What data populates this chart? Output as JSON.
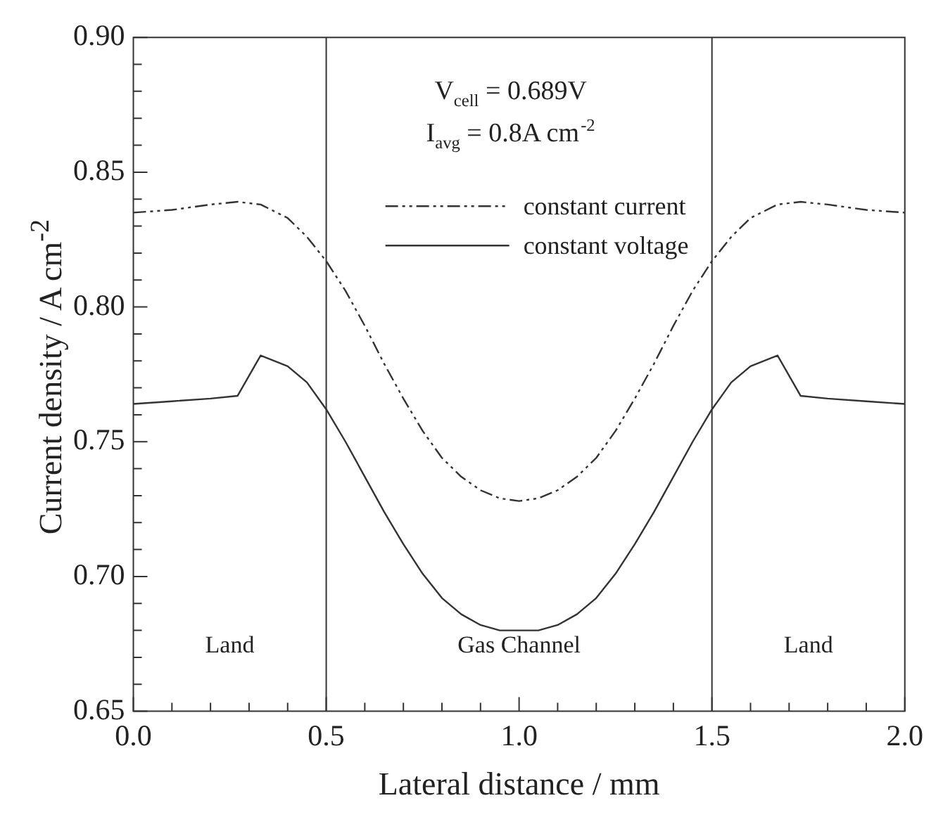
{
  "chart_data": {
    "type": "line",
    "xlabel": "Lateral distance / mm",
    "ylabel": "Current density / A cm$^{-2}$",
    "xlim": [
      0,
      2
    ],
    "ylim": [
      0.65,
      0.9
    ],
    "xticks": [
      {
        "value": 0,
        "label": "0.0"
      },
      {
        "value": 0.1,
        "label": null
      },
      {
        "value": 0.2,
        "label": null
      },
      {
        "value": 0.3,
        "label": null
      },
      {
        "value": 0.4,
        "label": null
      },
      {
        "value": 0.5,
        "label": "0.5"
      },
      {
        "value": 0.6,
        "label": null
      },
      {
        "value": 0.7,
        "label": null
      },
      {
        "value": 0.8,
        "label": null
      },
      {
        "value": 0.9,
        "label": null
      },
      {
        "value": 1,
        "label": "1.0"
      },
      {
        "value": 1.1,
        "label": null
      },
      {
        "value": 1.2,
        "label": null
      },
      {
        "value": 1.3,
        "label": null
      },
      {
        "value": 1.4,
        "label": null
      },
      {
        "value": 1.5,
        "label": "1.5"
      },
      {
        "value": 1.6,
        "label": null
      },
      {
        "value": 1.7,
        "label": null
      },
      {
        "value": 1.8,
        "label": null
      },
      {
        "value": 1.9,
        "label": null
      },
      {
        "value": 2,
        "label": "2.0"
      }
    ],
    "yticks": [
      {
        "value": 0.65,
        "label": "0.65"
      },
      {
        "value": 0.66,
        "label": null
      },
      {
        "value": 0.67,
        "label": null
      },
      {
        "value": 0.68,
        "label": null
      },
      {
        "value": 0.69,
        "label": null
      },
      {
        "value": 0.7,
        "label": "0.70"
      },
      {
        "value": 0.71,
        "label": null
      },
      {
        "value": 0.72,
        "label": null
      },
      {
        "value": 0.73,
        "label": null
      },
      {
        "value": 0.74,
        "label": null
      },
      {
        "value": 0.75,
        "label": "0.75"
      },
      {
        "value": 0.76,
        "label": null
      },
      {
        "value": 0.77,
        "label": null
      },
      {
        "value": 0.78,
        "label": null
      },
      {
        "value": 0.79,
        "label": null
      },
      {
        "value": 0.8,
        "label": "0.80"
      },
      {
        "value": 0.81,
        "label": null
      },
      {
        "value": 0.82,
        "label": null
      },
      {
        "value": 0.83,
        "label": null
      },
      {
        "value": 0.84,
        "label": null
      },
      {
        "value": 0.85,
        "label": "0.85"
      },
      {
        "value": 0.86,
        "label": null
      },
      {
        "value": 0.87,
        "label": null
      },
      {
        "value": 0.88,
        "label": null
      },
      {
        "value": 0.89,
        "label": null
      },
      {
        "value": 0.9,
        "label": "0.90"
      }
    ],
    "x": [
      0,
      0.1,
      0.2,
      0.27,
      0.33,
      0.4,
      0.45,
      0.5,
      0.55,
      0.6,
      0.65,
      0.7,
      0.75,
      0.8,
      0.85,
      0.9,
      0.95,
      1,
      1.05,
      1.1,
      1.15,
      1.2,
      1.25,
      1.3,
      1.35,
      1.4,
      1.45,
      1.5,
      1.55,
      1.6,
      1.67,
      1.73,
      1.8,
      1.9,
      2
    ],
    "series": [
      {
        "name": "constant current",
        "color": "#333333",
        "line_style": "dashdotdot",
        "values": [
          0.835,
          0.836,
          0.838,
          0.839,
          0.838,
          0.833,
          0.826,
          0.817,
          0.806,
          0.793,
          0.779,
          0.766,
          0.754,
          0.744,
          0.737,
          0.732,
          0.729,
          0.728,
          0.729,
          0.732,
          0.737,
          0.744,
          0.754,
          0.766,
          0.779,
          0.793,
          0.806,
          0.817,
          0.826,
          0.833,
          0.838,
          0.839,
          0.838,
          0.836,
          0.835
        ]
      },
      {
        "name": "constant voltage",
        "color": "#333333",
        "line_style": "solid",
        "values": [
          0.764,
          0.765,
          0.766,
          0.767,
          0.782,
          0.778,
          0.772,
          0.762,
          0.75,
          0.737,
          0.724,
          0.712,
          0.701,
          0.692,
          0.686,
          0.682,
          0.68,
          0.68,
          0.68,
          0.682,
          0.686,
          0.692,
          0.701,
          0.712,
          0.724,
          0.737,
          0.75,
          0.762,
          0.772,
          0.778,
          0.782,
          0.767,
          0.766,
          0.765,
          0.764
        ]
      }
    ],
    "ref_lines": [
      {
        "axis": "x",
        "value": 0.5
      },
      {
        "axis": "x",
        "value": 1.5
      }
    ],
    "annotations": [
      "V$_{cell}$ = 0.689V",
      "I$_{avg}$ = 0.8A cm$^{-2}$",
      "Land",
      "Gas Channel",
      "Land"
    ],
    "legend": "top",
    "grid": false,
    "marker": "none"
  }
}
